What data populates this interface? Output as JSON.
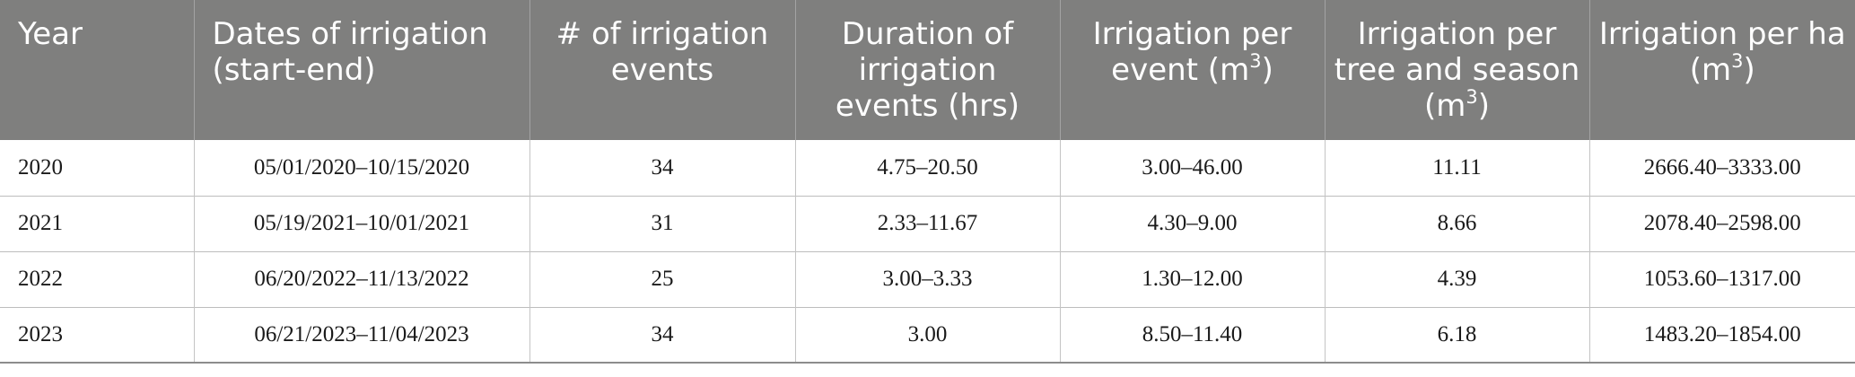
{
  "table": {
    "headers": [
      {
        "text": "Year"
      },
      {
        "text": "Dates of irrigation (start-end)"
      },
      {
        "text": "# of irrigation events"
      },
      {
        "text": "Duration of irrigation events (hrs)"
      },
      {
        "text": "Irrigation per event (m",
        "sup": "3",
        "tail": ")"
      },
      {
        "text": "Irrigation per tree and season (m",
        "sup": "3",
        "tail": ")"
      },
      {
        "text": "Irrigation per ha (m",
        "sup": "3",
        "tail": ")"
      }
    ],
    "rows": [
      [
        "2020",
        "05/01/2020–10/15/2020",
        "34",
        "4.75–20.50",
        "3.00–46.00",
        "11.11",
        "2666.40–3333.00"
      ],
      [
        "2021",
        "05/19/2021–10/01/2021",
        "31",
        "2.33–11.67",
        "4.30–9.00",
        "8.66",
        "2078.40–2598.00"
      ],
      [
        "2022",
        "06/20/2022–11/13/2022",
        "25",
        "3.00–3.33",
        "1.30–12.00",
        "4.39",
        "1053.60–1317.00"
      ],
      [
        "2023",
        "06/21/2023–11/04/2023",
        "34",
        "3.00",
        "8.50–11.40",
        "6.18",
        "1483.20–1854.00"
      ]
    ]
  },
  "colors": {
    "header_bg": "#7f7f7e",
    "header_text": "#ffffff",
    "row_divider": "#bdbdbd"
  }
}
